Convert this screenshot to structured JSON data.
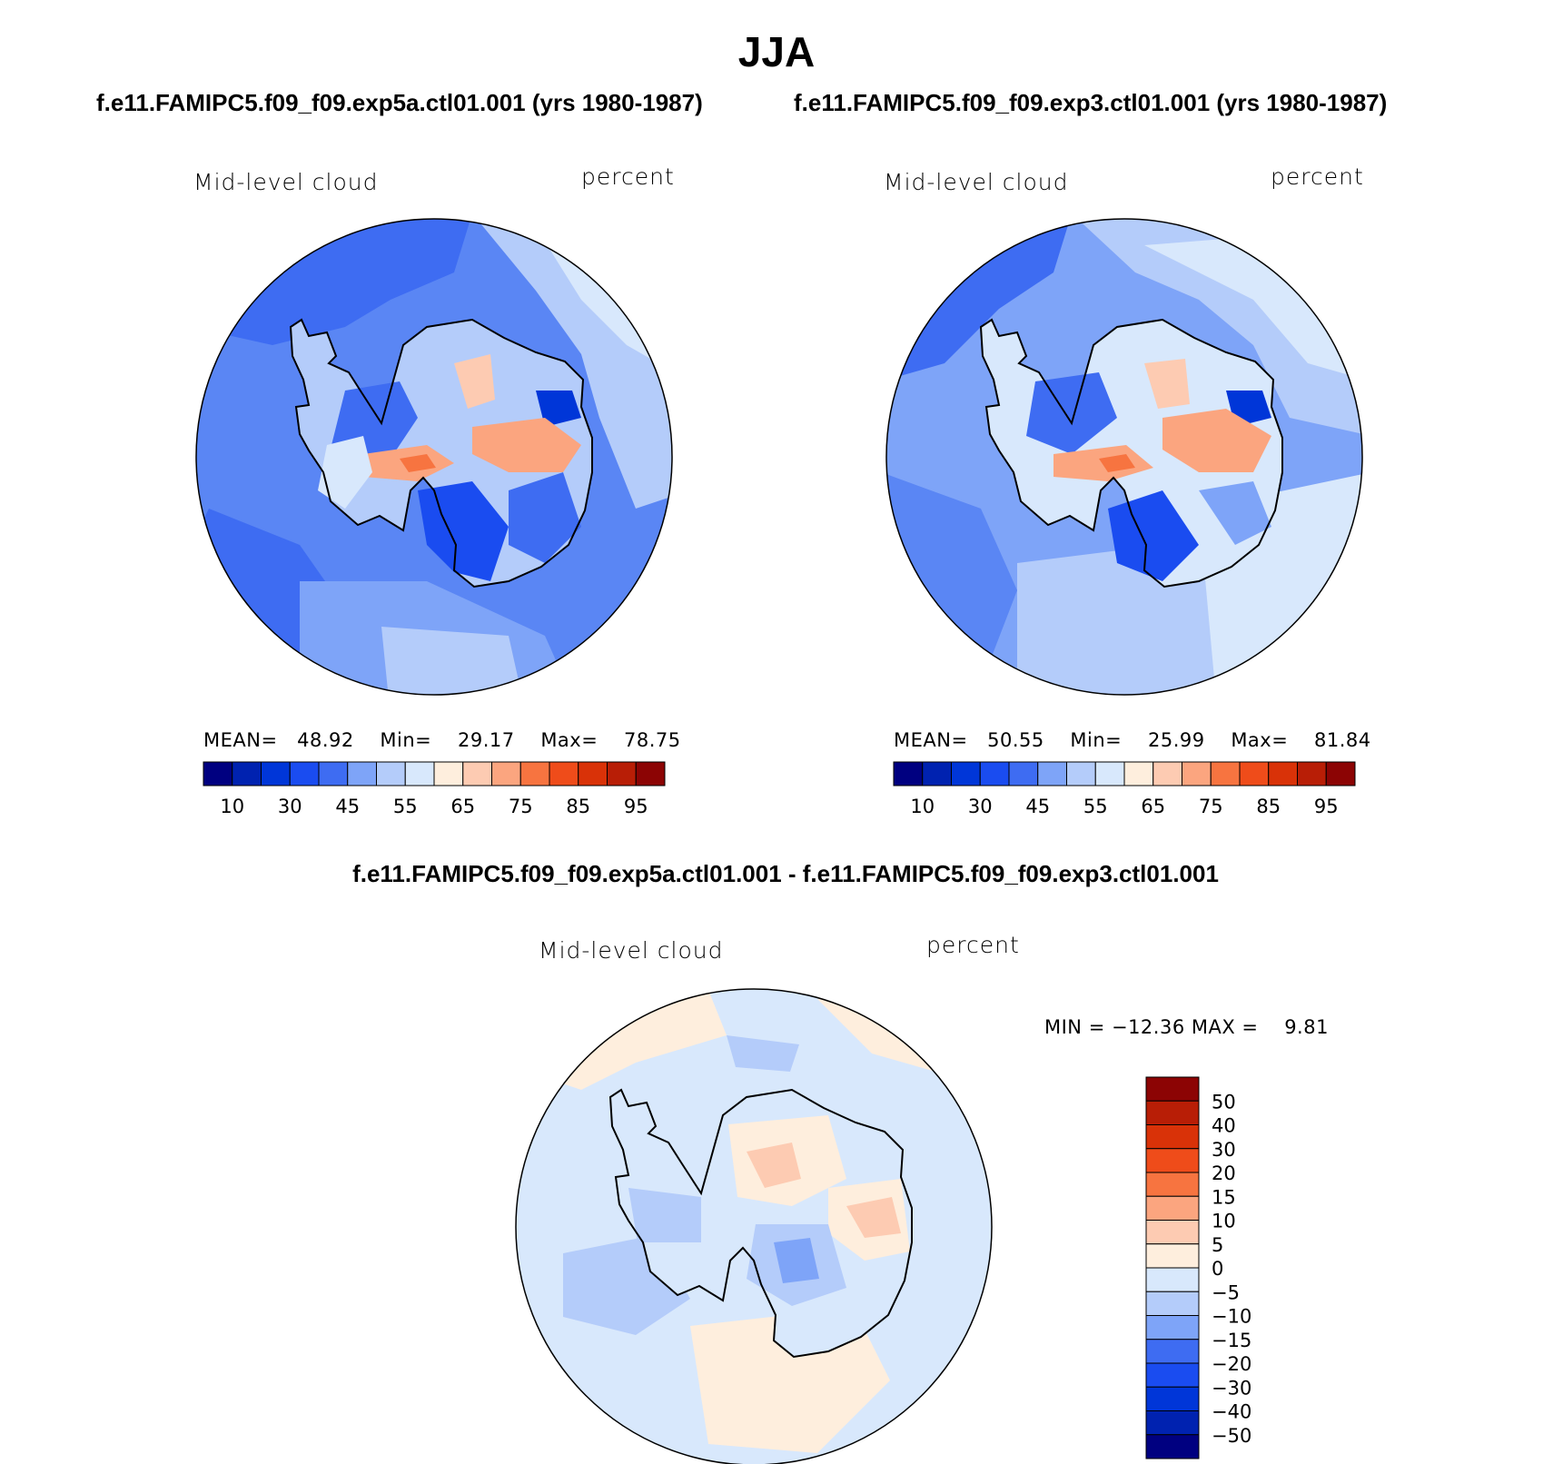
{
  "title": "JJA",
  "left_case_title": "f.e11.FAMIPC5.f09_f09.exp5a.ctl01.001 (yrs 1980-1987)",
  "right_case_title": "f.e11.FAMIPC5.f09_f09.exp3.ctl01.001 (yrs 1980-1987)",
  "diff_title": "f.e11.FAMIPC5.f09_f09.exp5a.ctl01.001 - f.e11.FAMIPC5.f09_f09.exp3.ctl01.001",
  "colors": {
    "main_scale": [
      "#000080",
      "#0022b0",
      "#0036d8",
      "#1a4cf0",
      "#3e6cf2",
      "#7ea4f8",
      "#b4ccfa",
      "#d8e8fc",
      "#feeedd",
      "#fdcbb2",
      "#fba57f",
      "#f77440",
      "#ef4c1a",
      "#d93208",
      "#b81e06",
      "#8c0404"
    ],
    "diff_scale": [
      "#000080",
      "#0022b0",
      "#0036d8",
      "#1a4cf0",
      "#3e6cf2",
      "#7ea4f8",
      "#b4ccfa",
      "#d8e8fc",
      "#feeedd",
      "#fdcbb2",
      "#fba57f",
      "#f77440",
      "#ef4c1a",
      "#d93208",
      "#b81e06",
      "#8c0404"
    ]
  },
  "chart_data": [
    {
      "type": "heatmap",
      "projection": "south-polar-stereographic",
      "variable_label": "Mid-level cloud",
      "units": "percent",
      "stats": {
        "mean_label": "MEAN=",
        "mean": "48.92",
        "min_label": "Min=",
        "min": "29.17",
        "max_label": "Max=",
        "max": "78.75"
      },
      "colorbar_ticks": [
        "10",
        "30",
        "45",
        "55",
        "65",
        "75",
        "85",
        "95"
      ],
      "contour_levels": [
        5,
        10,
        20,
        30,
        40,
        45,
        50,
        55,
        60,
        65,
        70,
        75,
        80,
        85,
        90,
        95
      ]
    },
    {
      "type": "heatmap",
      "projection": "south-polar-stereographic",
      "variable_label": "Mid-level cloud",
      "units": "percent",
      "stats": {
        "mean_label": "MEAN=",
        "mean": "50.55",
        "min_label": "Min=",
        "min": "25.99",
        "max_label": "Max=",
        "max": "81.84"
      },
      "colorbar_ticks": [
        "10",
        "30",
        "45",
        "55",
        "65",
        "75",
        "85",
        "95"
      ],
      "contour_levels": [
        5,
        10,
        20,
        30,
        40,
        45,
        50,
        55,
        60,
        65,
        70,
        75,
        80,
        85,
        90,
        95
      ]
    },
    {
      "type": "heatmap",
      "projection": "south-polar-stereographic",
      "variable_label": "Mid-level cloud",
      "units": "percent",
      "stats_text": "MIN = −12.36 MAX =    9.81",
      "colorbar_ticks": [
        "50",
        "40",
        "30",
        "20",
        "15",
        "10",
        "5",
        "0",
        "−5",
        "−10",
        "−15",
        "−20",
        "−30",
        "−40",
        "−50"
      ]
    }
  ]
}
